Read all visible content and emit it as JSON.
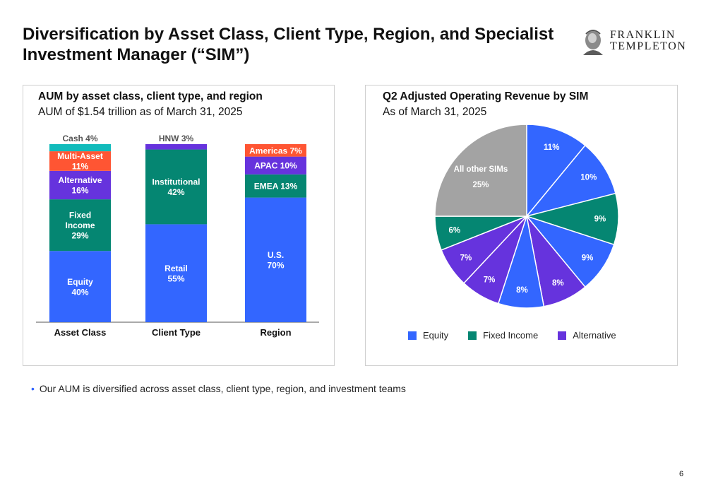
{
  "header": {
    "title": "Diversification by Asset Class, Client Type, Region, and Specialist Investment Manager (“SIM”)",
    "logo_line1": "FRANKLIN",
    "logo_line2": "TEMPLETON"
  },
  "left_panel": {
    "title": "AUM by asset class, client type, and region",
    "subtitle": "AUM of $1.54 trillion as of March 31, 2025"
  },
  "right_panel": {
    "title": "Q2 Adjusted Operating Revenue by SIM",
    "subtitle": "As of March 31, 2025"
  },
  "colors": {
    "equity_blue": "#3366ff",
    "teal": "#058672",
    "purple": "#6633dd",
    "orange_red": "#ff5533",
    "cyan": "#11bbbb",
    "gray": "#a3a3a3"
  },
  "chart_data": [
    {
      "type": "bar",
      "stacked": true,
      "normalized_percent": true,
      "categories": [
        "Asset Class",
        "Client Type",
        "Region"
      ],
      "stacks": [
        {
          "category": "Asset Class",
          "segments": [
            {
              "name": "Equity",
              "value": 40,
              "color": "#3366ff"
            },
            {
              "name": "Fixed Income",
              "value": 29,
              "color": "#058672"
            },
            {
              "name": "Alternative",
              "value": 16,
              "color": "#6633dd"
            },
            {
              "name": "Multi-Asset",
              "value": 11,
              "color": "#ff5533"
            },
            {
              "name": "Cash",
              "value": 4,
              "color": "#11bbbb"
            }
          ]
        },
        {
          "category": "Client Type",
          "segments": [
            {
              "name": "Retail",
              "value": 55,
              "color": "#3366ff"
            },
            {
              "name": "Institutional",
              "value": 42,
              "color": "#058672"
            },
            {
              "name": "HNW",
              "value": 3,
              "color": "#6633dd"
            }
          ]
        },
        {
          "category": "Region",
          "segments": [
            {
              "name": "U.S.",
              "value": 70,
              "color": "#3366ff"
            },
            {
              "name": "EMEA",
              "value": 13,
              "color": "#058672"
            },
            {
              "name": "APAC",
              "value": 10,
              "color": "#6633dd"
            },
            {
              "name": "Americas",
              "value": 7,
              "color": "#ff5533"
            }
          ]
        }
      ],
      "ylim": [
        0,
        100
      ]
    },
    {
      "type": "pie",
      "start_angle_deg": 0,
      "direction": "clockwise",
      "slices": [
        {
          "label": "11%",
          "value": 11,
          "group": "Equity",
          "color": "#3366ff"
        },
        {
          "label": "10%",
          "value": 10,
          "group": "Equity",
          "color": "#3366ff"
        },
        {
          "label": "9%",
          "value": 9,
          "group": "Fixed Income",
          "color": "#058672"
        },
        {
          "label": "9%",
          "value": 9,
          "group": "Equity",
          "color": "#3366ff"
        },
        {
          "label": "8%",
          "value": 8,
          "group": "Alternative",
          "color": "#6633dd"
        },
        {
          "label": "8%",
          "value": 8,
          "group": "Equity",
          "color": "#3366ff"
        },
        {
          "label": "7%",
          "value": 7,
          "group": "Alternative",
          "color": "#6633dd"
        },
        {
          "label": "7%",
          "value": 7,
          "group": "Alternative",
          "color": "#6633dd"
        },
        {
          "label": "6%",
          "value": 6,
          "group": "Fixed Income",
          "color": "#058672"
        },
        {
          "label": "All other SIMs 25%",
          "name": "All other SIMs",
          "pct": "25%",
          "value": 25,
          "group": "Other",
          "color": "#a3a3a3"
        }
      ],
      "legend": [
        {
          "name": "Equity",
          "color": "#3366ff"
        },
        {
          "name": "Fixed Income",
          "color": "#058672"
        },
        {
          "name": "Alternative",
          "color": "#6633dd"
        }
      ],
      "legend_position": "bottom"
    }
  ],
  "footer": {
    "bullet": "Our AUM is diversified across asset class, client type, region, and investment teams",
    "page_number": "6"
  }
}
